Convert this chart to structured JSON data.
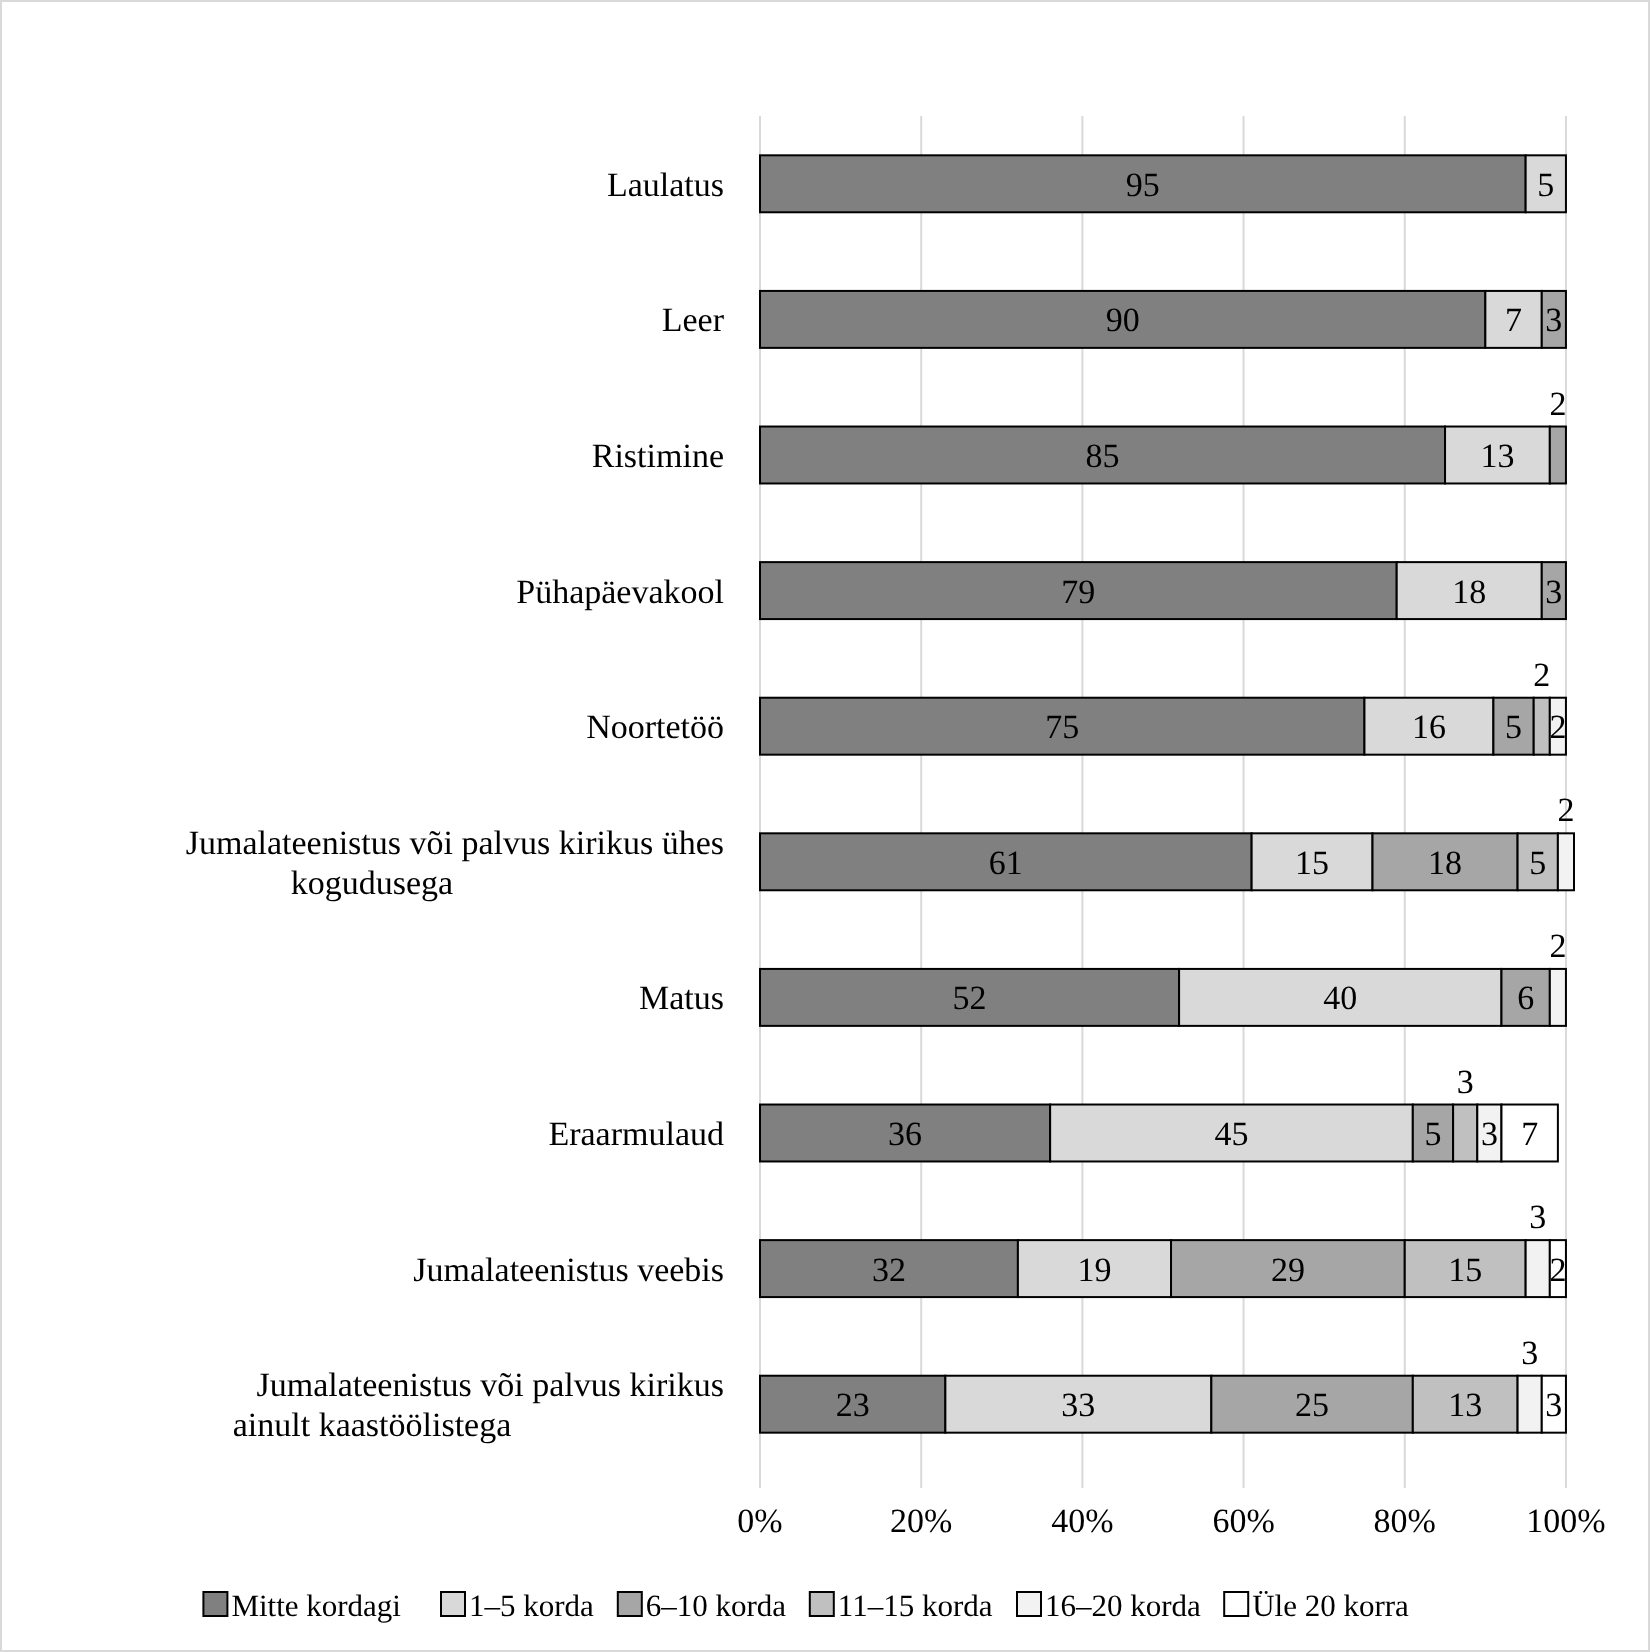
{
  "chart_data": {
    "type": "bar",
    "orientation": "horizontal",
    "stacked": true,
    "data_labels": true,
    "grid": "x",
    "legend": "bottom",
    "categories": [
      "Laulatus",
      "Leer",
      "Ristimine",
      "Pühapäevakool",
      "Noortetöö",
      "Jumalateenistus või palvus kirikus ühes kogudusega",
      "Matus",
      "Eraarmulaud",
      "Jumalateenistus veebis",
      "Jumalateenistus või palvus kirikus ainult kaastöölistega"
    ],
    "xlim": [
      0,
      101
    ],
    "xticks": [
      {
        "value": 0,
        "label": "0%"
      },
      {
        "value": 20,
        "label": "20%"
      },
      {
        "value": 40,
        "label": "40%"
      },
      {
        "value": 60,
        "label": "60%"
      },
      {
        "value": 80,
        "label": "80%"
      },
      {
        "value": 100,
        "label": "100%"
      }
    ],
    "series": [
      {
        "name": "Mitte kordagi",
        "color": "#808080",
        "values": [
          95,
          90,
          85,
          79,
          75,
          61,
          52,
          36,
          32,
          23
        ]
      },
      {
        "name": "1–5 korda",
        "color": "#d9d9d9",
        "values": [
          5,
          7,
          13,
          18,
          16,
          15,
          40,
          45,
          19,
          33
        ]
      },
      {
        "name": "6–10 korda",
        "color": "#a6a6a6",
        "values": [
          null,
          3,
          2,
          3,
          5,
          18,
          6,
          5,
          29,
          25
        ]
      },
      {
        "name": "11–15 korda",
        "color": "#c0c0c0",
        "values": [
          null,
          null,
          null,
          null,
          2,
          5,
          null,
          3,
          15,
          13
        ]
      },
      {
        "name": "16–20 korda",
        "color": "#f2f2f2",
        "values": [
          null,
          null,
          null,
          null,
          2,
          2,
          2,
          3,
          3,
          3
        ]
      },
      {
        "name": "Üle 20 korra",
        "color": "#ffffff",
        "values": [
          null,
          null,
          null,
          null,
          null,
          null,
          null,
          7,
          2,
          3
        ]
      }
    ]
  }
}
